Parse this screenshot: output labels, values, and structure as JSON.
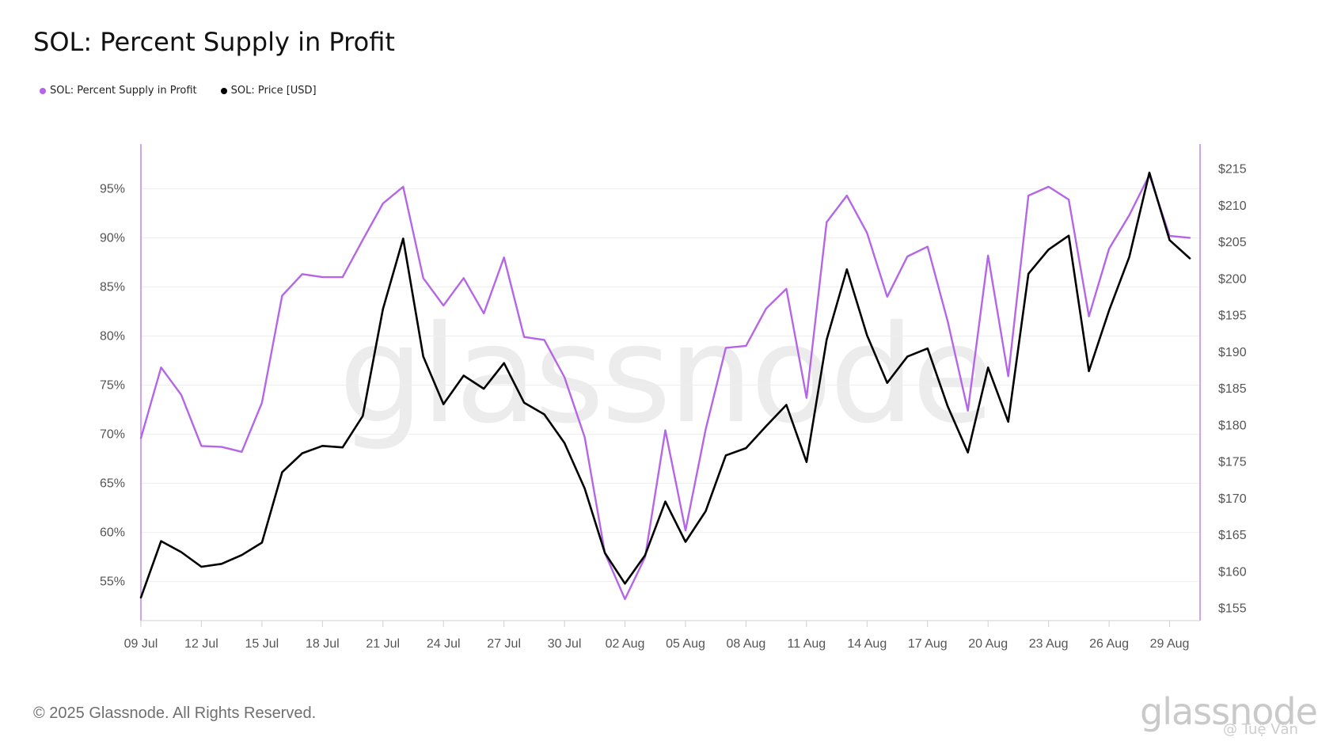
{
  "chart_data": {
    "type": "line",
    "title": "SOL: Percent Supply in Profit",
    "watermark": "glassnode",
    "x": [
      "09 Jul",
      "10 Jul",
      "11 Jul",
      "12 Jul",
      "13 Jul",
      "14 Jul",
      "15 Jul",
      "16 Jul",
      "17 Jul",
      "18 Jul",
      "19 Jul",
      "20 Jul",
      "21 Jul",
      "22 Jul",
      "23 Jul",
      "24 Jul",
      "25 Jul",
      "26 Jul",
      "27 Jul",
      "28 Jul",
      "29 Jul",
      "30 Jul",
      "31 Jul",
      "01 Aug",
      "02 Aug",
      "03 Aug",
      "04 Aug",
      "05 Aug",
      "06 Aug",
      "07 Aug",
      "08 Aug",
      "09 Aug",
      "10 Aug",
      "11 Aug",
      "12 Aug",
      "13 Aug",
      "14 Aug",
      "15 Aug",
      "16 Aug",
      "17 Aug",
      "18 Aug",
      "19 Aug",
      "20 Aug",
      "21 Aug",
      "22 Aug",
      "23 Aug",
      "24 Aug",
      "25 Aug",
      "26 Aug",
      "27 Aug",
      "28 Aug",
      "29 Aug",
      "30 Aug"
    ],
    "x_ticks": [
      "09 Jul",
      "12 Jul",
      "15 Jul",
      "18 Jul",
      "21 Jul",
      "24 Jul",
      "27 Jul",
      "30 Jul",
      "02 Aug",
      "05 Aug",
      "08 Aug",
      "11 Aug",
      "14 Aug",
      "17 Aug",
      "20 Aug",
      "23 Aug",
      "26 Aug",
      "29 Aug"
    ],
    "y_left": {
      "ticks": [
        "55%",
        "60%",
        "65%",
        "70%",
        "75%",
        "80%",
        "85%",
        "90%",
        "95%"
      ],
      "tick_values": [
        55,
        60,
        65,
        70,
        75,
        80,
        85,
        90,
        95
      ],
      "range": [
        51.5,
        98.5
      ]
    },
    "y_right": {
      "ticks": [
        "$155",
        "$160",
        "$165",
        "$170",
        "$175",
        "$180",
        "$185",
        "$190",
        "$195",
        "$200",
        "$205",
        "$210",
        "$215"
      ],
      "tick_values": [
        155,
        160,
        165,
        170,
        175,
        180,
        185,
        190,
        195,
        200,
        205,
        210,
        215
      ],
      "range": [
        154,
        217
      ]
    },
    "grid": true,
    "legend_position": "top-left",
    "series": [
      {
        "name": "SOL: Percent Supply in Profit",
        "axis": "left",
        "color": "#b565e8",
        "values": [
          69.6,
          76.8,
          74.0,
          68.8,
          68.7,
          68.2,
          73.2,
          84.1,
          86.3,
          86.0,
          86.0,
          89.8,
          93.5,
          95.2,
          85.9,
          83.1,
          85.9,
          82.3,
          88.0,
          79.9,
          79.6,
          75.8,
          69.7,
          57.9,
          53.2,
          57.5,
          70.4,
          60.2,
          70.5,
          78.8,
          79.0,
          82.8,
          84.8,
          73.7,
          91.6,
          94.3,
          90.5,
          84.0,
          88.1,
          89.1,
          81.5,
          72.4,
          88.2,
          75.9,
          94.3,
          95.2,
          93.9,
          82.0,
          88.9,
          92.3,
          96.4,
          90.2,
          90.0
        ]
      },
      {
        "name": "SOL: Price [USD]",
        "axis": "right",
        "color": "#000000",
        "values": [
          156.5,
          164.2,
          162.7,
          160.7,
          161.1,
          162.3,
          164.0,
          173.6,
          176.2,
          177.2,
          177.0,
          181.3,
          195.9,
          205.5,
          189.4,
          182.9,
          186.8,
          185.0,
          188.5,
          183.1,
          181.5,
          177.6,
          171.4,
          162.6,
          158.4,
          162.3,
          169.6,
          164.1,
          168.3,
          175.9,
          176.9,
          179.9,
          182.8,
          175.0,
          191.7,
          201.3,
          192.3,
          185.8,
          189.4,
          190.5,
          182.6,
          176.3,
          187.9,
          180.5,
          200.7,
          204.0,
          205.9,
          187.4,
          195.7,
          203.0,
          214.5,
          205.3,
          202.8
        ]
      }
    ]
  },
  "footer": {
    "copyright": "© 2025 Glassnode. All Rights Reserved.",
    "brand": "glassnode",
    "attribution": "@ Tuệ Vẫn"
  }
}
